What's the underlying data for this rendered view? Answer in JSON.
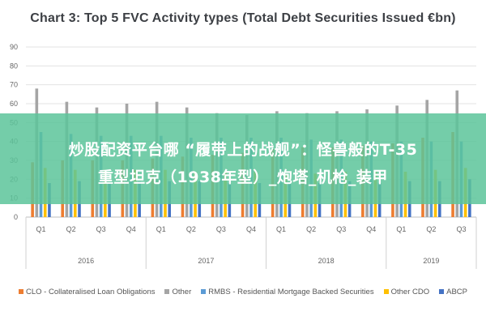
{
  "chart_data": {
    "type": "bar",
    "title": "Chart 3: Top 5 FVC Activity types (Total Debt Securities Issued €bn)",
    "xlabel": "",
    "ylabel": "",
    "ylim": [
      0,
      90
    ],
    "yticks": [
      0,
      10,
      20,
      30,
      40,
      50,
      60,
      70,
      80,
      90
    ],
    "grid": true,
    "legend_position": "bottom",
    "categories": [
      "Q1",
      "Q2",
      "Q3",
      "Q4",
      "Q1",
      "Q2",
      "Q3",
      "Q4",
      "Q1",
      "Q2",
      "Q3",
      "Q4",
      "Q1",
      "Q2",
      "Q3"
    ],
    "years": [
      {
        "label": "2016",
        "span": 4
      },
      {
        "label": "2017",
        "span": 4
      },
      {
        "label": "2018",
        "span": 4
      },
      {
        "label": "2019",
        "span": 3
      }
    ],
    "series": [
      {
        "name": "CLO - Collateralised Loan Obligations",
        "color": "#ed7d31",
        "values": [
          29,
          30,
          30,
          30,
          31,
          32,
          33,
          34,
          36,
          37,
          37,
          38,
          39,
          42,
          45
        ]
      },
      {
        "name": "Other",
        "color": "#a5a5a5",
        "values": [
          68,
          61,
          58,
          60,
          61,
          58,
          55,
          54,
          56,
          55,
          56,
          57,
          59,
          62,
          67
        ]
      },
      {
        "name": "RMBS - Residential Mortgage Backed Securities",
        "color": "#5b9bd5",
        "values": [
          45,
          44,
          43,
          43,
          43,
          42,
          42,
          42,
          42,
          41,
          41,
          40,
          40,
          40,
          40
        ]
      },
      {
        "name": "Other CDO",
        "color": "#ffc000",
        "values": [
          26,
          25,
          25,
          25,
          25,
          24,
          24,
          24,
          23,
          23,
          24,
          24,
          24,
          25,
          26
        ]
      },
      {
        "name": "ABCP",
        "color": "#4472c4",
        "values": [
          18,
          19,
          18,
          19,
          19,
          19,
          18,
          18,
          18,
          18,
          19,
          18,
          19,
          19,
          20
        ]
      }
    ]
  },
  "overlay": {
    "line1": "炒股配资平台哪 “履带上的战舰”：怪兽般的T-35",
    "line2": "重型坦克（1938年型）_炮塔_机枪_装甲"
  }
}
